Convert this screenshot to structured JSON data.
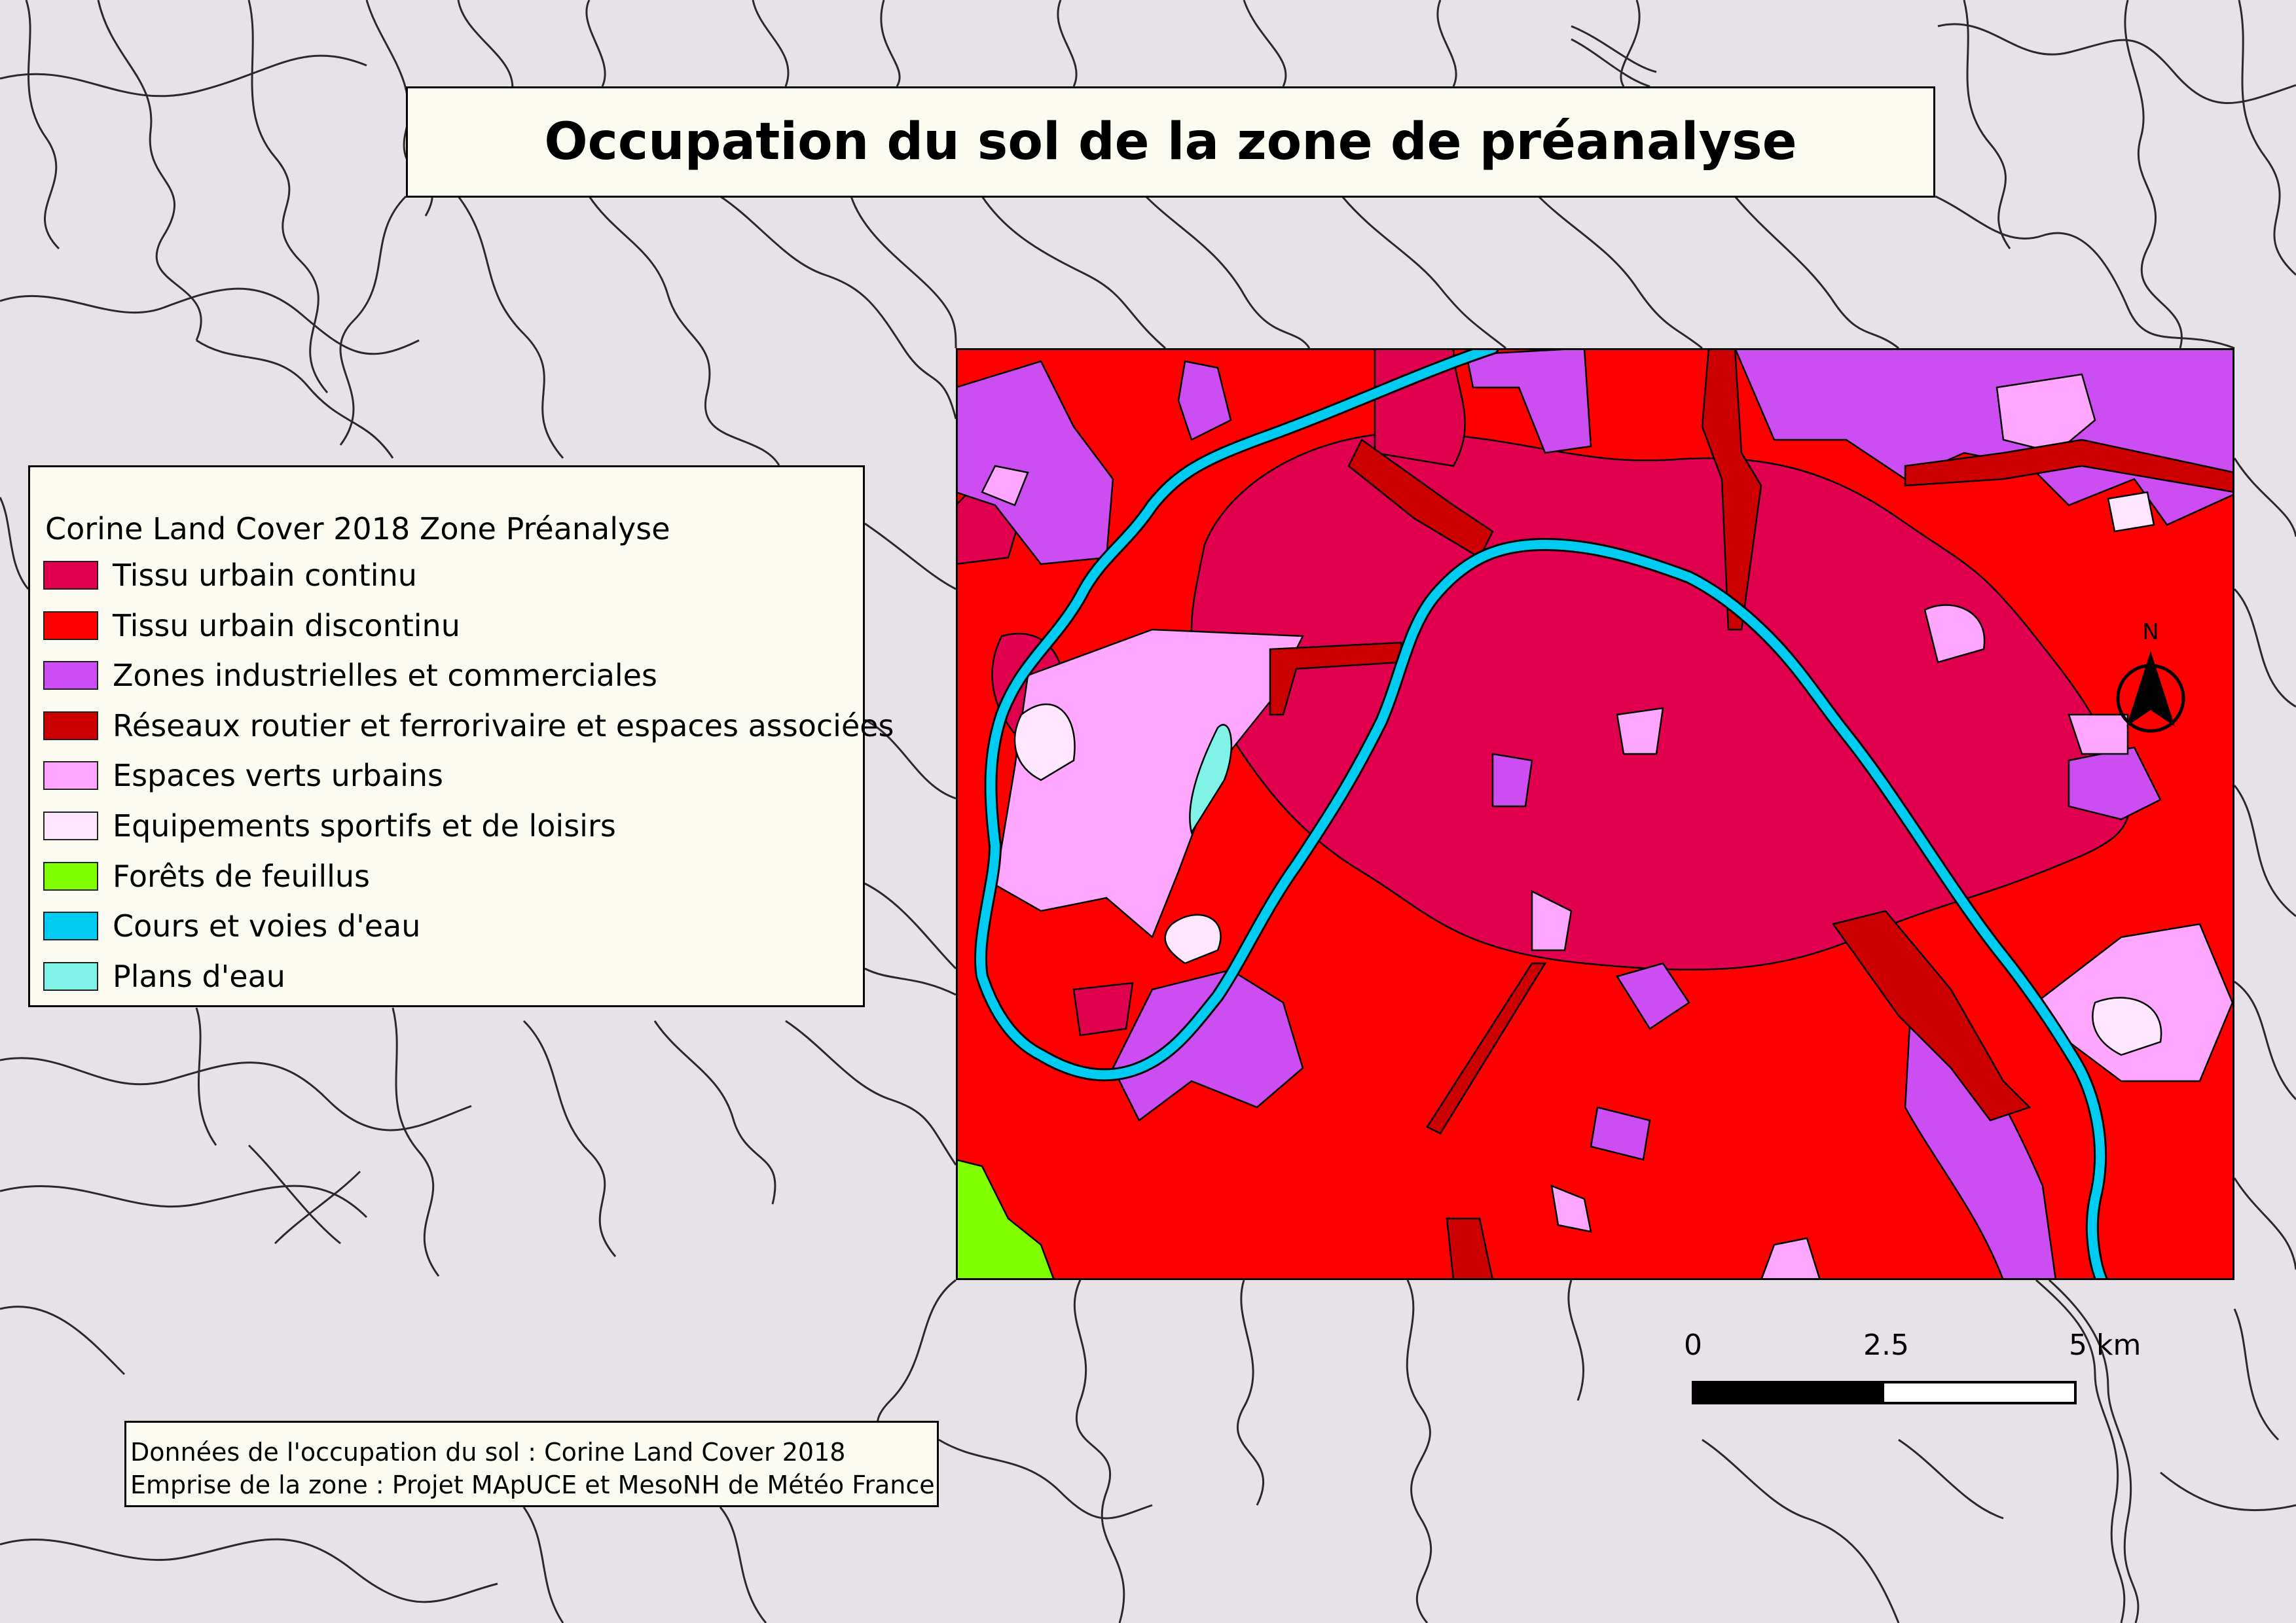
{
  "title": "Occupation du sol de la zone de préanalyse",
  "legend": {
    "title": "Corine Land Cover 2018 Zone Préanalyse",
    "items": [
      {
        "label": "Tissu urbain continu",
        "color": "#e0004d"
      },
      {
        "label": "Tissu urbain discontinu",
        "color": "#ff0000"
      },
      {
        "label": "Zones industrielles et commerciales",
        "color": "#cc4df2"
      },
      {
        "label": "Réseaux routier et ferrorivaire et espaces associées",
        "color": "#cc0000"
      },
      {
        "label": "Espaces verts urbains",
        "color": "#ffa6ff"
      },
      {
        "label": "Equipements sportifs et de loisirs",
        "color": "#ffe6ff"
      },
      {
        "label": "Forêts de feuillus",
        "color": "#80ff00"
      },
      {
        "label": "Cours et voies d'eau",
        "color": "#00ccf2"
      },
      {
        "label": "Plans d'eau",
        "color": "#80f2e6"
      }
    ]
  },
  "source": {
    "line1": "Données de l'occupation du sol : Corine Land Cover 2018",
    "line2": "Emprise de la zone : Projet MApUCE et MesoNH de Météo France"
  },
  "scalebar": {
    "labels": [
      "0",
      "2.5",
      "5 km"
    ],
    "colors": [
      "#000000",
      "#ffffff"
    ]
  },
  "north_arrow": {
    "label": "N"
  },
  "colors": {
    "background": "#e7e2e7",
    "boundary": "#333333"
  }
}
